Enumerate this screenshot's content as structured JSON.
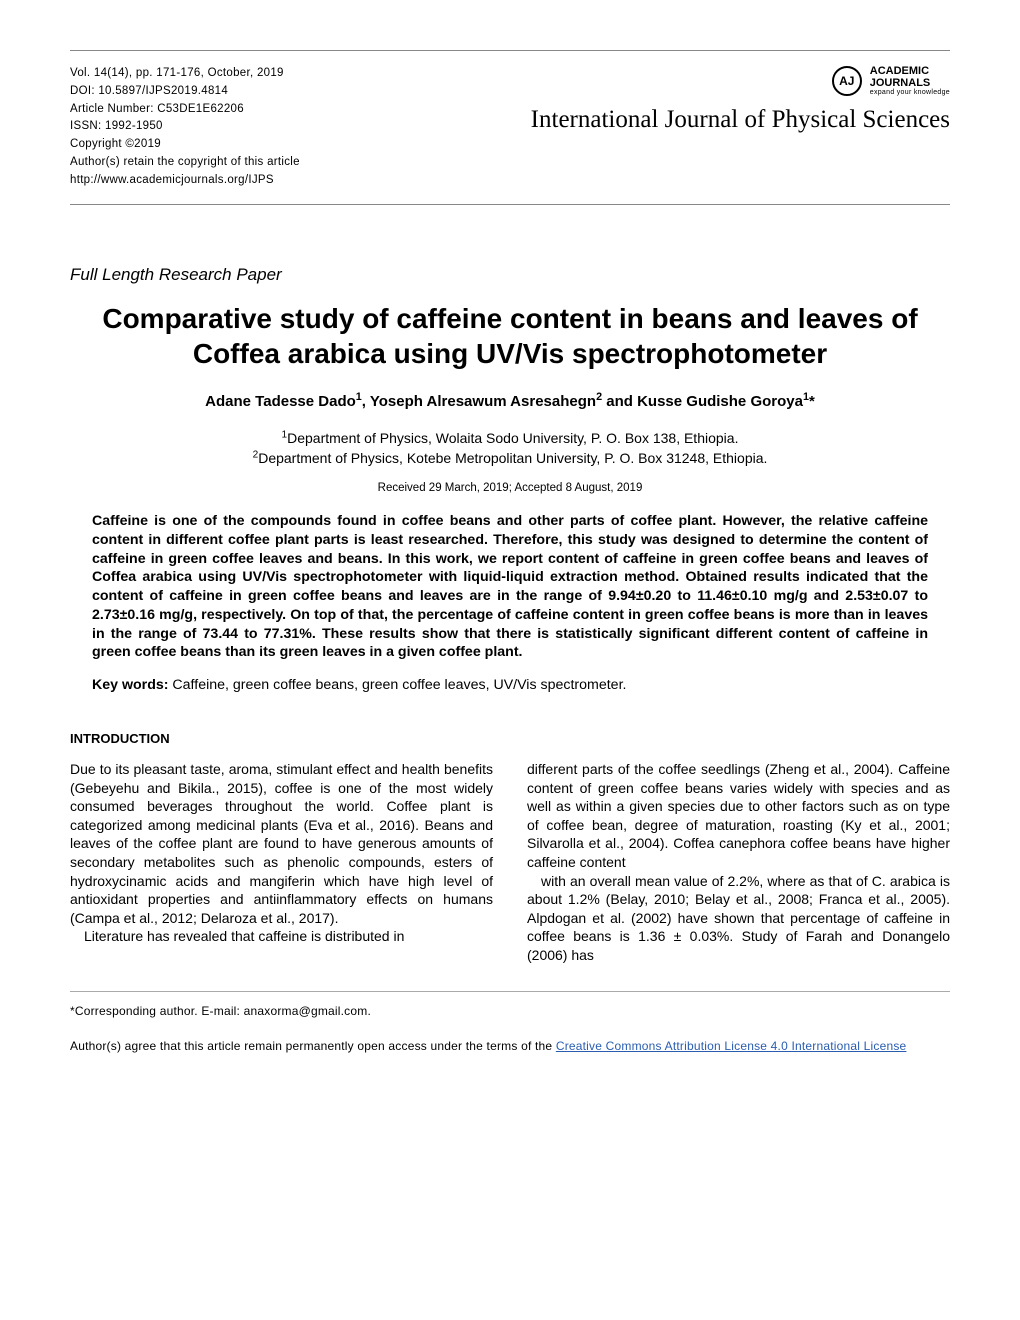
{
  "header": {
    "volume_line": "Vol. 14(14), pp. 171-176, October, 2019",
    "doi_line": "DOI: 10.5897/IJPS2019.4814",
    "article_no_line": "Article Number: C53DE1E62206",
    "issn_line": "ISSN: 1992-1950",
    "copyright_line": "Copyright ©2019",
    "retain_line": "Author(s) retain the copyright of this article",
    "url_line": "http://www.academicjournals.org/IJPS",
    "logo_initials": "AJ",
    "logo_line1": "ACADEMIC",
    "logo_line2": "JOURNALS",
    "logo_line3": "expand your knowledge",
    "journal_name": "International Journal of Physical Sciences"
  },
  "paper_type": "Full Length Research Paper",
  "title": "Comparative study of caffeine content in beans and leaves of Coffea arabica using UV/Vis spectrophotometer",
  "authors_html": "Adane Tadesse Dado<sup>1</sup>, Yoseph Alresawum Asresahegn<sup>2</sup> and Kusse Gudishe Goroya<sup>1</sup>*",
  "affiliations_html": "<sup>1</sup>Department of Physics, Wolaita Sodo University, P. O. Box 138, Ethiopia.<br><sup>2</sup>Department of Physics, Kotebe Metropolitan University, P. O. Box 31248, Ethiopia.",
  "dates": "Received 29 March, 2019; Accepted 8 August, 2019",
  "abstract": "Caffeine is one of the compounds found in coffee beans and other parts of coffee plant. However, the relative caffeine content in different coffee plant parts is least researched. Therefore, this study was designed to determine the content of caffeine in green coffee leaves and beans. In this work, we report content of caffeine in green coffee beans and leaves of Coffea arabica using UV/Vis spectrophotometer with liquid-liquid extraction method. Obtained results indicated that the content of caffeine in green coffee beans and leaves are in the range of 9.94±0.20 to 11.46±0.10 mg/g and 2.53±0.07 to 2.73±0.16 mg/g, respectively. On top of that, the percentage of caffeine content in green coffee beans is more than in leaves in the range of 73.44 to 77.31%. These results show that there is statistically significant different content of caffeine in green coffee beans than its green leaves in a given coffee plant.",
  "keywords_label": "Key words:",
  "keywords_text": " Caffeine, green coffee beans, green coffee leaves, UV/Vis spectrometer.",
  "section_heading": "INTRODUCTION",
  "col1_p1": "Due to its pleasant taste, aroma, stimulant effect and health benefits (Gebeyehu and Bikila., 2015), coffee is one of the most widely consumed beverages throughout the world. Coffee plant is categorized among medicinal plants (Eva et al., 2016). Beans and leaves of the coffee plant are found to have generous amounts of secondary metabolites such as phenolic compounds, esters of hydroxycinamic acids and mangiferin which have high level of antioxidant properties and antiinflammatory effects on humans (Campa et al., 2012; Delaroza et al., 2017).",
  "col1_p2": "Literature has  revealed  that  caffeine  is  distributed  in",
  "col2_p1": "different parts of the coffee seedlings (Zheng et al., 2004). Caffeine content of green coffee beans varies widely with species and as well as within a given species due to other factors such as on type of coffee bean, degree of maturation, roasting (Ky et al., 2001; Silvarolla et al., 2004). Coffea canephora coffee beans have higher caffeine content",
  "col2_p2": "with an overall mean value of 2.2%, where as that of C. arabica is about 1.2% (Belay, 2010; Belay et al., 2008; Franca et al., 2005). Alpdogan et al. (2002) have shown that percentage of caffeine in coffee beans is 1.36 ± 0.03%.  Study  of  Farah  and  Donangelo  (2006)  has",
  "corresponding": "*Corresponding author. E-mail: anaxorma@gmail.com.",
  "license_pre": "Author(s) agree that this article remain permanently open access under the terms of the ",
  "license_link": "Creative Commons Attribution License 4.0 International License"
}
